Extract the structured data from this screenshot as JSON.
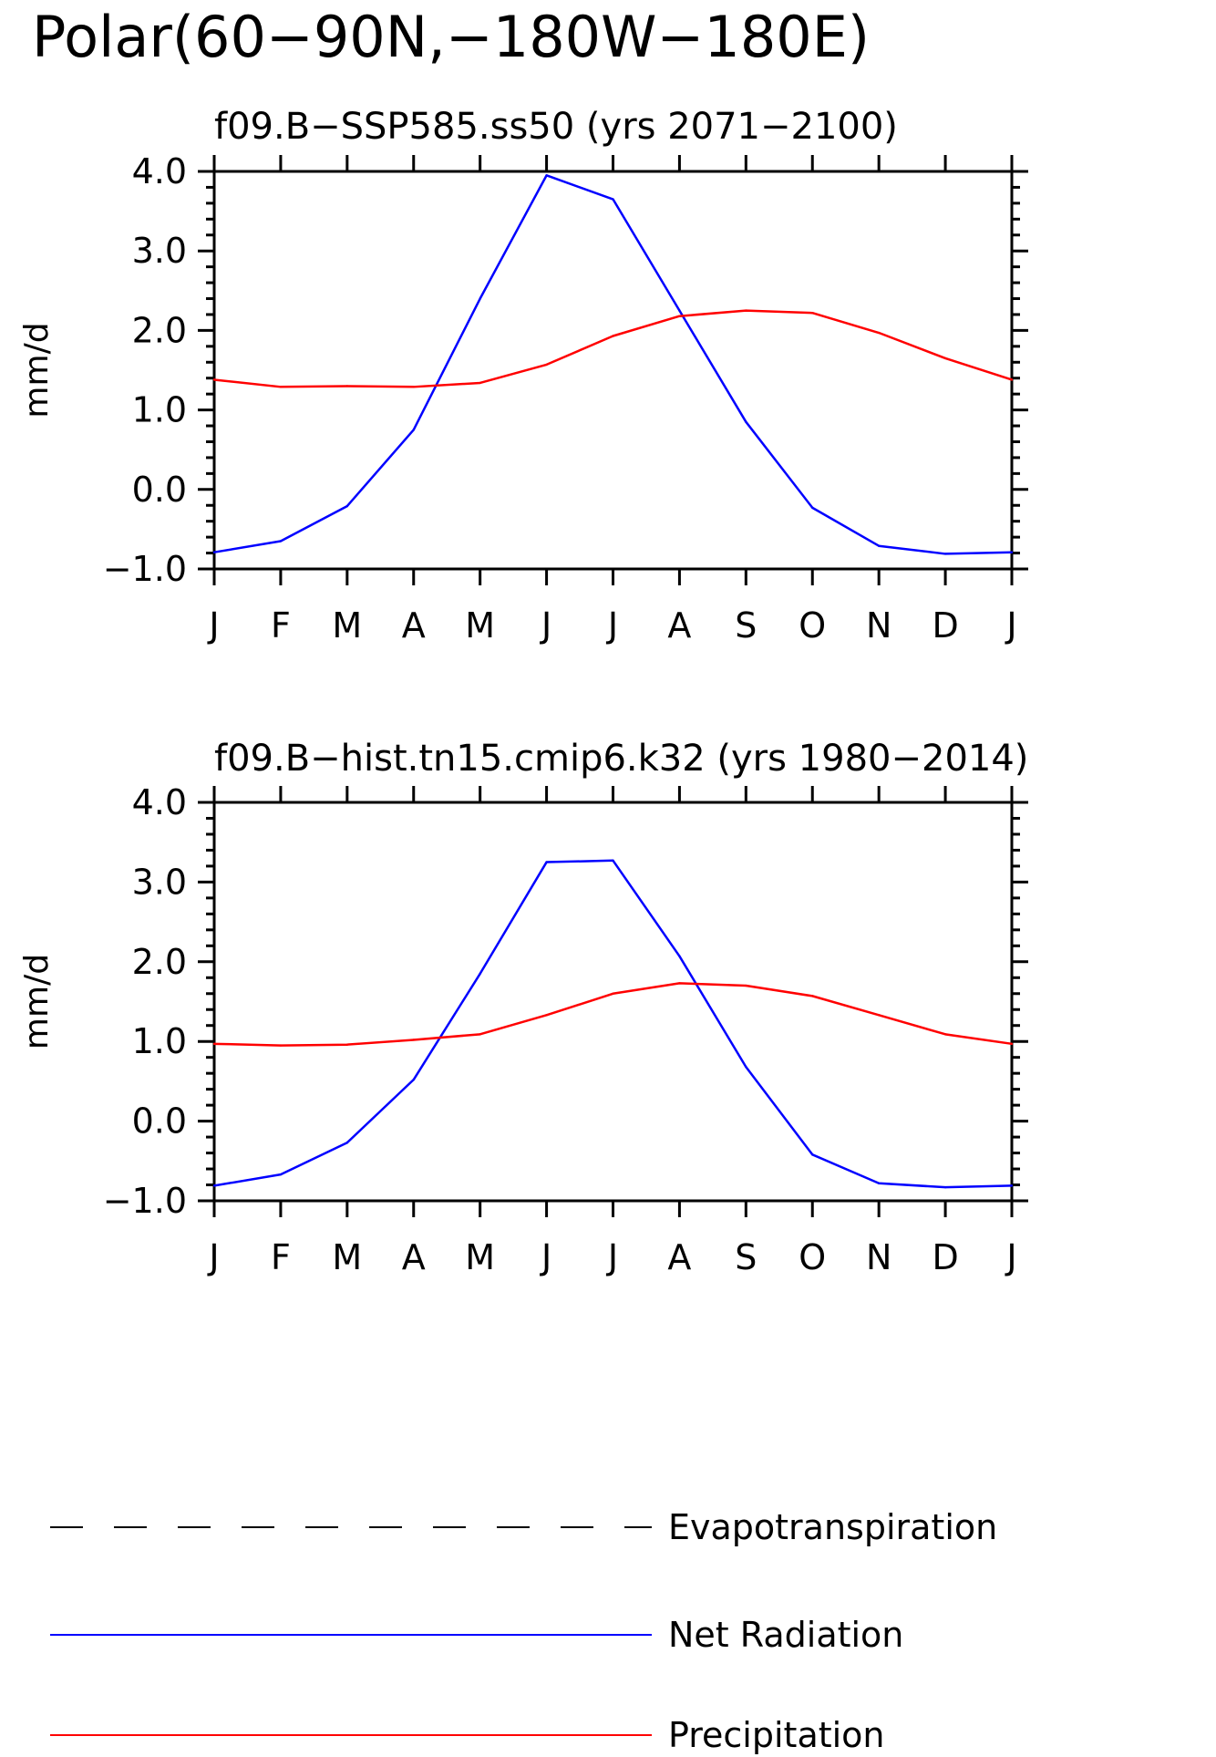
{
  "title": "Polar(60−90N,−180W−180E)",
  "legend": {
    "items": [
      {
        "label": "Evapotranspiration",
        "color": "#000000",
        "style": "dashed"
      },
      {
        "label": "Net Radiation",
        "color": "#0000ff",
        "style": "solid"
      },
      {
        "label": "Precipitation",
        "color": "#ff0000",
        "style": "solid"
      }
    ]
  },
  "chart_data": [
    {
      "type": "line",
      "title": "f09.B−SSP585.ss50 (yrs 2071−2100)",
      "xlabel": "",
      "ylabel": "mm/d",
      "categories": [
        "J",
        "F",
        "M",
        "A",
        "M",
        "J",
        "J",
        "A",
        "S",
        "O",
        "N",
        "D",
        "J"
      ],
      "ylim": [
        -1.0,
        4.0
      ],
      "yticks": [
        "−1.0",
        "0.0",
        "1.0",
        "2.0",
        "3.0",
        "4.0"
      ],
      "series": [
        {
          "name": "Net Radiation",
          "color": "#0000ff",
          "values": [
            -0.79,
            -0.65,
            -0.21,
            0.75,
            2.4,
            3.95,
            3.65,
            2.25,
            0.85,
            -0.23,
            -0.71,
            -0.81,
            -0.79
          ]
        },
        {
          "name": "Precipitation",
          "color": "#ff0000",
          "values": [
            1.38,
            1.29,
            1.3,
            1.29,
            1.34,
            1.57,
            1.93,
            2.18,
            2.25,
            2.22,
            1.97,
            1.65,
            1.38
          ]
        }
      ]
    },
    {
      "type": "line",
      "title": "f09.B−hist.tn15.cmip6.k32 (yrs 1980−2014)",
      "xlabel": "",
      "ylabel": "mm/d",
      "categories": [
        "J",
        "F",
        "M",
        "A",
        "M",
        "J",
        "J",
        "A",
        "S",
        "O",
        "N",
        "D",
        "J"
      ],
      "ylim": [
        -1.0,
        4.0
      ],
      "yticks": [
        "−1.0",
        "0.0",
        "1.0",
        "2.0",
        "3.0",
        "4.0"
      ],
      "series": [
        {
          "name": "Net Radiation",
          "color": "#0000ff",
          "values": [
            -0.81,
            -0.67,
            -0.27,
            0.52,
            1.85,
            3.25,
            3.27,
            2.07,
            0.68,
            -0.42,
            -0.78,
            -0.83,
            -0.81
          ]
        },
        {
          "name": "Precipitation",
          "color": "#ff0000",
          "values": [
            0.97,
            0.95,
            0.96,
            1.02,
            1.09,
            1.33,
            1.6,
            1.73,
            1.7,
            1.57,
            1.33,
            1.09,
            0.97
          ]
        }
      ]
    }
  ]
}
